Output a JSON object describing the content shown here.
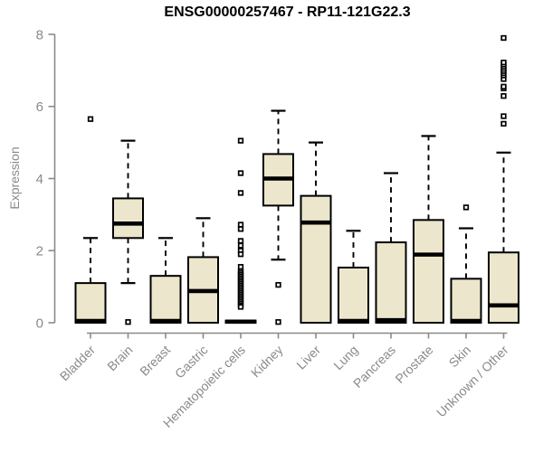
{
  "chart_data": {
    "type": "boxplot",
    "title": "ENSG00000257467 - RP11-121G22.3",
    "ylabel": "Expression",
    "xlabel": "",
    "ylim": [
      0,
      8
    ],
    "yticks": [
      0,
      2,
      4,
      6,
      8
    ],
    "grid": false,
    "legend": "none",
    "categories": [
      "Bladder",
      "Brain",
      "Breast",
      "Gastric",
      "Hematopoietic cells",
      "Kidney",
      "Liver",
      "Lung",
      "Pancreas",
      "Prostate",
      "Skin",
      "Unknown / Other"
    ],
    "series": [
      {
        "label": "Bladder",
        "whisker_low": 0,
        "q1": 0,
        "median": 0.05,
        "q3": 1.1,
        "whisker_high": 2.35,
        "outliers": [
          5.65
        ]
      },
      {
        "label": "Brain",
        "whisker_low": 1.1,
        "q1": 2.35,
        "median": 2.75,
        "q3": 3.45,
        "whisker_high": 5.05,
        "outliers": [
          0.02
        ]
      },
      {
        "label": "Breast",
        "whisker_low": 0,
        "q1": 0,
        "median": 0.05,
        "q3": 1.3,
        "whisker_high": 2.35,
        "outliers": []
      },
      {
        "label": "Gastric",
        "whisker_low": 0,
        "q1": 0,
        "median": 0.88,
        "q3": 1.82,
        "whisker_high": 2.9,
        "outliers": []
      },
      {
        "label": "Hematopoietic cells",
        "whisker_low": 0,
        "q1": 0,
        "median": 0.03,
        "q3": 0.06,
        "whisker_high": 0.08,
        "outliers": [
          5.05,
          4.15,
          3.6,
          2.72,
          2.6,
          2.27,
          2.14,
          2.0,
          1.9,
          1.55,
          1.43,
          1.38,
          1.33,
          1.28,
          1.23,
          1.18,
          1.13,
          1.08,
          1.03,
          0.98,
          0.93,
          0.88,
          0.83,
          0.78,
          0.73,
          0.68,
          0.63,
          0.58,
          0.53,
          0.48,
          0.44
        ]
      },
      {
        "label": "Kidney",
        "whisker_low": 1.75,
        "q1": 3.25,
        "median": 4.0,
        "q3": 4.68,
        "whisker_high": 5.88,
        "outliers": [
          1.05,
          0.02
        ]
      },
      {
        "label": "Liver",
        "whisker_low": 0,
        "q1": 0,
        "median": 2.78,
        "q3": 3.52,
        "whisker_high": 5.0,
        "outliers": []
      },
      {
        "label": "Lung",
        "whisker_low": 0,
        "q1": 0,
        "median": 0.05,
        "q3": 1.53,
        "whisker_high": 2.55,
        "outliers": []
      },
      {
        "label": "Pancreas",
        "whisker_low": 0,
        "q1": 0,
        "median": 0.07,
        "q3": 2.23,
        "whisker_high": 4.15,
        "outliers": []
      },
      {
        "label": "Prostate",
        "whisker_low": 0,
        "q1": 0,
        "median": 1.89,
        "q3": 2.85,
        "whisker_high": 5.18,
        "outliers": []
      },
      {
        "label": "Skin",
        "whisker_low": 0,
        "q1": 0,
        "median": 0.05,
        "q3": 1.22,
        "whisker_high": 2.62,
        "outliers": [
          3.2
        ]
      },
      {
        "label": "Unknown / Other",
        "whisker_low": 0,
        "q1": 0,
        "median": 0.48,
        "q3": 1.95,
        "whisker_high": 4.72,
        "outliers": [
          5.52,
          5.73,
          6.29,
          6.5,
          6.55,
          6.76,
          6.86,
          6.92,
          6.98,
          7.04,
          7.1,
          7.16,
          7.22,
          7.9
        ]
      }
    ]
  },
  "colors": {
    "background": "#ffffff",
    "box_fill": "#ece7cc",
    "box_border": "#000000",
    "median": "#000000",
    "whisker": "#000000",
    "outlier_border": "#000000",
    "outlier_fill": "#ffffff",
    "axis": "#8a8a8a",
    "axis_text": "#8a8a8a",
    "title_text": "#000000"
  }
}
